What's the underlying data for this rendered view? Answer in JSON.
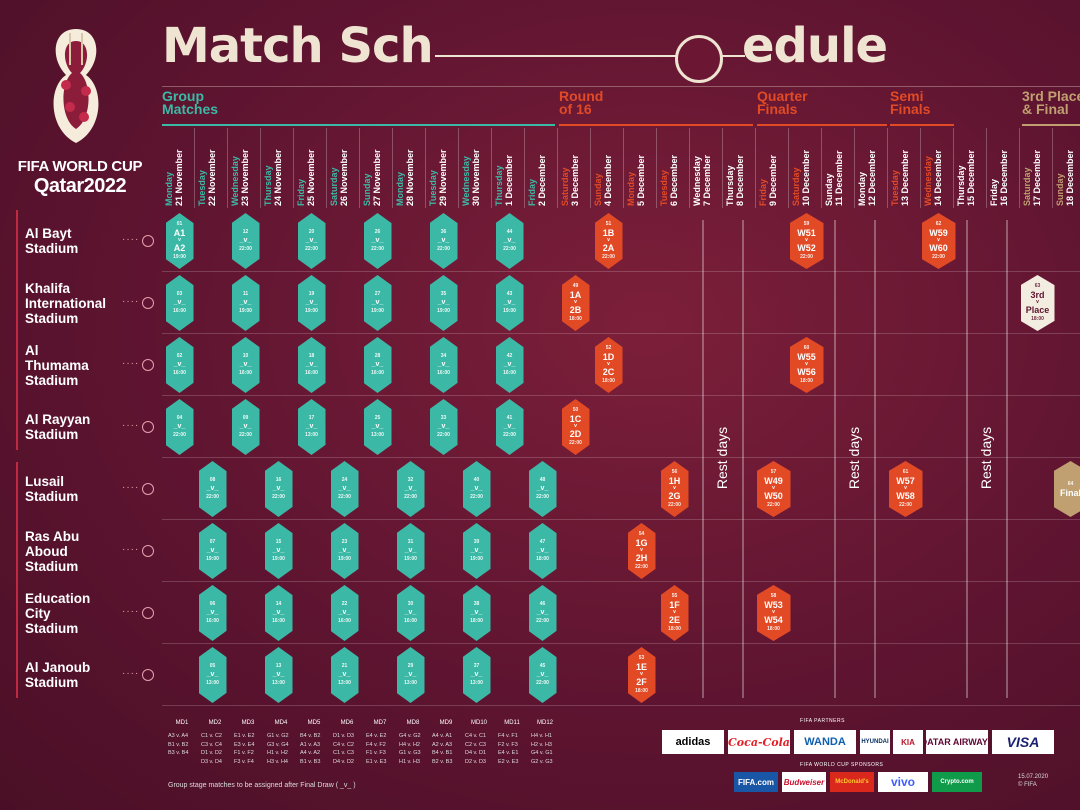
{
  "header": {
    "title_left": "Match Sch",
    "title_right": "edule",
    "logo_line1": "FIFA WORLD CUP",
    "logo_line2": "Qatar2022"
  },
  "stages": {
    "group": "Group\nMatches",
    "r16": "Round\nof 16",
    "qf": "Quarter\nFinals",
    "sf": "Semi\nFinals",
    "final": "3rd Place\n& Final"
  },
  "dates": [
    {
      "day": "Monday",
      "date": "21 November"
    },
    {
      "day": "Tuesday",
      "date": "22 November"
    },
    {
      "day": "Wednesday",
      "date": "23 November"
    },
    {
      "day": "Thursday",
      "date": "24 November"
    },
    {
      "day": "Friday",
      "date": "25 November"
    },
    {
      "day": "Saturday",
      "date": "26 November"
    },
    {
      "day": "Sunday",
      "date": "27 November"
    },
    {
      "day": "Monday",
      "date": "28 November"
    },
    {
      "day": "Tuesday",
      "date": "29 November"
    },
    {
      "day": "Wednesday",
      "date": "30 November"
    },
    {
      "day": "Thursday",
      "date": "1 December"
    },
    {
      "day": "Friday",
      "date": "2 December"
    },
    {
      "day": "Saturday",
      "date": "3 December"
    },
    {
      "day": "Sunday",
      "date": "4 December"
    },
    {
      "day": "Monday",
      "date": "5 December"
    },
    {
      "day": "Tuesday",
      "date": "6 December"
    },
    {
      "day": "Wednesday",
      "date": "7 December"
    },
    {
      "day": "Thursday",
      "date": "8 December"
    },
    {
      "day": "Friday",
      "date": "9 December"
    },
    {
      "day": "Saturday",
      "date": "10 December"
    },
    {
      "day": "Sunday",
      "date": "11 December"
    },
    {
      "day": "Monday",
      "date": "12 December"
    },
    {
      "day": "Tuesday",
      "date": "13 December"
    },
    {
      "day": "Wednesday",
      "date": "14 December"
    },
    {
      "day": "Thursday",
      "date": "15 December"
    },
    {
      "day": "Friday",
      "date": "16 December"
    },
    {
      "day": "Saturday",
      "date": "17 December"
    },
    {
      "day": "Sunday",
      "date": "18 December"
    }
  ],
  "stadiums": [
    {
      "name": "Al Bayt\nStadium"
    },
    {
      "name": "Khalifa\nInternational\nStadium"
    },
    {
      "name": "Al\nThumama\nStadium"
    },
    {
      "name": "Al Rayyan\nStadium"
    },
    {
      "name": "Lusail\nStadium"
    },
    {
      "name": "Ras Abu\nAboud\nStadium"
    },
    {
      "name": "Education\nCity\nStadium"
    },
    {
      "name": "Al Janoub\nStadium"
    }
  ],
  "matches": [
    {
      "row": 0,
      "col": 0,
      "kind": "g",
      "num": "01",
      "t1": "A1",
      "t2": "A2",
      "time": "19:00"
    },
    {
      "row": 0,
      "col": 2,
      "kind": "g",
      "num": "12",
      "t1": "_v_",
      "t2": "",
      "time": "22:00"
    },
    {
      "row": 0,
      "col": 4,
      "kind": "g",
      "num": "20",
      "t1": "_v_",
      "t2": "",
      "time": "22:00"
    },
    {
      "row": 0,
      "col": 6,
      "kind": "g",
      "num": "26",
      "t1": "_v_",
      "t2": "",
      "time": "22:00"
    },
    {
      "row": 0,
      "col": 8,
      "kind": "g",
      "num": "36",
      "t1": "_v_",
      "t2": "",
      "time": "22:00"
    },
    {
      "row": 0,
      "col": 10,
      "kind": "g",
      "num": "44",
      "t1": "_v_",
      "t2": "",
      "time": "22:00"
    },
    {
      "row": 0,
      "col": 13,
      "kind": "k",
      "num": "51",
      "t1": "1B",
      "t2": "2A",
      "time": "22:00"
    },
    {
      "row": 0,
      "col": 19,
      "kind": "k",
      "num": "59",
      "t1": "W51",
      "t2": "W52",
      "time": "22:00"
    },
    {
      "row": 0,
      "col": 23,
      "kind": "k",
      "num": "62",
      "t1": "W59",
      "t2": "W60",
      "time": "22:00"
    },
    {
      "row": 1,
      "col": 0,
      "kind": "g",
      "num": "03",
      "t1": "_v_",
      "t2": "",
      "time": "16:00"
    },
    {
      "row": 1,
      "col": 2,
      "kind": "g",
      "num": "11",
      "t1": "_v_",
      "t2": "",
      "time": "19:00"
    },
    {
      "row": 1,
      "col": 4,
      "kind": "g",
      "num": "19",
      "t1": "_v_",
      "t2": "",
      "time": "19:00"
    },
    {
      "row": 1,
      "col": 6,
      "kind": "g",
      "num": "27",
      "t1": "_v_",
      "t2": "",
      "time": "19:00"
    },
    {
      "row": 1,
      "col": 8,
      "kind": "g",
      "num": "35",
      "t1": "_v_",
      "t2": "",
      "time": "19:00"
    },
    {
      "row": 1,
      "col": 10,
      "kind": "g",
      "num": "43",
      "t1": "_v_",
      "t2": "",
      "time": "19:00"
    },
    {
      "row": 1,
      "col": 12,
      "kind": "k",
      "num": "49",
      "t1": "1A",
      "t2": "2B",
      "time": "18:00"
    },
    {
      "row": 1,
      "col": 26,
      "kind": "tp",
      "num": "63",
      "t1": "3rd",
      "t2": "Place",
      "time": "18:00"
    },
    {
      "row": 2,
      "col": 0,
      "kind": "g",
      "num": "02",
      "t1": "_v_",
      "t2": "",
      "time": "16:00"
    },
    {
      "row": 2,
      "col": 2,
      "kind": "g",
      "num": "10",
      "t1": "_v_",
      "t2": "",
      "time": "16:00"
    },
    {
      "row": 2,
      "col": 4,
      "kind": "g",
      "num": "18",
      "t1": "_v_",
      "t2": "",
      "time": "16:00"
    },
    {
      "row": 2,
      "col": 6,
      "kind": "g",
      "num": "28",
      "t1": "_v_",
      "t2": "",
      "time": "16:00"
    },
    {
      "row": 2,
      "col": 8,
      "kind": "g",
      "num": "34",
      "t1": "_v_",
      "t2": "",
      "time": "16:00"
    },
    {
      "row": 2,
      "col": 10,
      "kind": "g",
      "num": "42",
      "t1": "_v_",
      "t2": "",
      "time": "16:00"
    },
    {
      "row": 2,
      "col": 13,
      "kind": "k",
      "num": "52",
      "t1": "1D",
      "t2": "2C",
      "time": "18:00"
    },
    {
      "row": 2,
      "col": 19,
      "kind": "k",
      "num": "60",
      "t1": "W55",
      "t2": "W56",
      "time": "18:00"
    },
    {
      "row": 3,
      "col": 0,
      "kind": "g",
      "num": "04",
      "t1": "_v_",
      "t2": "",
      "time": "22:00"
    },
    {
      "row": 3,
      "col": 2,
      "kind": "g",
      "num": "09",
      "t1": "_v_",
      "t2": "",
      "time": "22:00"
    },
    {
      "row": 3,
      "col": 4,
      "kind": "g",
      "num": "17",
      "t1": "_v_",
      "t2": "",
      "time": "13:00"
    },
    {
      "row": 3,
      "col": 6,
      "kind": "g",
      "num": "25",
      "t1": "_v_",
      "t2": "",
      "time": "13:00"
    },
    {
      "row": 3,
      "col": 8,
      "kind": "g",
      "num": "33",
      "t1": "_v_",
      "t2": "",
      "time": "22:00"
    },
    {
      "row": 3,
      "col": 10,
      "kind": "g",
      "num": "41",
      "t1": "_v_",
      "t2": "",
      "time": "22:00"
    },
    {
      "row": 3,
      "col": 12,
      "kind": "k",
      "num": "50",
      "t1": "1C",
      "t2": "2D",
      "time": "22:00"
    },
    {
      "row": 4,
      "col": 1,
      "kind": "g",
      "num": "08",
      "t1": "_v_",
      "t2": "",
      "time": "22:00"
    },
    {
      "row": 4,
      "col": 3,
      "kind": "g",
      "num": "16",
      "t1": "_v_",
      "t2": "",
      "time": "22:00"
    },
    {
      "row": 4,
      "col": 5,
      "kind": "g",
      "num": "24",
      "t1": "_v_",
      "t2": "",
      "time": "22:00"
    },
    {
      "row": 4,
      "col": 7,
      "kind": "g",
      "num": "32",
      "t1": "_v_",
      "t2": "",
      "time": "22:00"
    },
    {
      "row": 4,
      "col": 9,
      "kind": "g",
      "num": "40",
      "t1": "_v_",
      "t2": "",
      "time": "22:00"
    },
    {
      "row": 4,
      "col": 11,
      "kind": "g",
      "num": "48",
      "t1": "_v_",
      "t2": "",
      "time": "22:00"
    },
    {
      "row": 4,
      "col": 15,
      "kind": "k",
      "num": "56",
      "t1": "1H",
      "t2": "2G",
      "time": "22:00"
    },
    {
      "row": 4,
      "col": 18,
      "kind": "k",
      "num": "57",
      "t1": "W49",
      "t2": "W50",
      "time": "22:00"
    },
    {
      "row": 4,
      "col": 22,
      "kind": "k",
      "num": "61",
      "t1": "W57",
      "t2": "W58",
      "time": "22:00"
    },
    {
      "row": 4,
      "col": 27,
      "kind": "f",
      "num": "64",
      "t1": "Final",
      "t2": "",
      "time": ""
    },
    {
      "row": 5,
      "col": 1,
      "kind": "g",
      "num": "07",
      "t1": "_v_",
      "t2": "",
      "time": "19:00"
    },
    {
      "row": 5,
      "col": 3,
      "kind": "g",
      "num": "15",
      "t1": "_v_",
      "t2": "",
      "time": "19:00"
    },
    {
      "row": 5,
      "col": 5,
      "kind": "g",
      "num": "23",
      "t1": "_v_",
      "t2": "",
      "time": "19:00"
    },
    {
      "row": 5,
      "col": 7,
      "kind": "g",
      "num": "31",
      "t1": "_v_",
      "t2": "",
      "time": "19:00"
    },
    {
      "row": 5,
      "col": 9,
      "kind": "g",
      "num": "39",
      "t1": "_v_",
      "t2": "",
      "time": "19:00"
    },
    {
      "row": 5,
      "col": 11,
      "kind": "g",
      "num": "47",
      "t1": "_v_",
      "t2": "",
      "time": "18:00"
    },
    {
      "row": 5,
      "col": 14,
      "kind": "k",
      "num": "54",
      "t1": "1G",
      "t2": "2H",
      "time": "22:00"
    },
    {
      "row": 6,
      "col": 1,
      "kind": "g",
      "num": "06",
      "t1": "_v_",
      "t2": "",
      "time": "16:00"
    },
    {
      "row": 6,
      "col": 3,
      "kind": "g",
      "num": "14",
      "t1": "_v_",
      "t2": "",
      "time": "16:00"
    },
    {
      "row": 6,
      "col": 5,
      "kind": "g",
      "num": "22",
      "t1": "_v_",
      "t2": "",
      "time": "16:00"
    },
    {
      "row": 6,
      "col": 7,
      "kind": "g",
      "num": "30",
      "t1": "_v_",
      "t2": "",
      "time": "16:00"
    },
    {
      "row": 6,
      "col": 9,
      "kind": "g",
      "num": "38",
      "t1": "_v_",
      "t2": "",
      "time": "18:00"
    },
    {
      "row": 6,
      "col": 11,
      "kind": "g",
      "num": "46",
      "t1": "_v_",
      "t2": "",
      "time": "22:00"
    },
    {
      "row": 6,
      "col": 15,
      "kind": "k",
      "num": "55",
      "t1": "1F",
      "t2": "2E",
      "time": "18:00"
    },
    {
      "row": 6,
      "col": 18,
      "kind": "k",
      "num": "58",
      "t1": "W53",
      "t2": "W54",
      "time": "18:00"
    },
    {
      "row": 7,
      "col": 1,
      "kind": "g",
      "num": "05",
      "t1": "_v_",
      "t2": "",
      "time": "13:00"
    },
    {
      "row": 7,
      "col": 3,
      "kind": "g",
      "num": "13",
      "t1": "_v_",
      "t2": "",
      "time": "13:00"
    },
    {
      "row": 7,
      "col": 5,
      "kind": "g",
      "num": "21",
      "t1": "_v_",
      "t2": "",
      "time": "13:00"
    },
    {
      "row": 7,
      "col": 7,
      "kind": "g",
      "num": "29",
      "t1": "_v_",
      "t2": "",
      "time": "13:00"
    },
    {
      "row": 7,
      "col": 9,
      "kind": "g",
      "num": "37",
      "t1": "_v_",
      "t2": "",
      "time": "13:00"
    },
    {
      "row": 7,
      "col": 11,
      "kind": "g",
      "num": "45",
      "t1": "_v_",
      "t2": "",
      "time": "22:00"
    },
    {
      "row": 7,
      "col": 14,
      "kind": "k",
      "num": "53",
      "t1": "1E",
      "t2": "2F",
      "time": "18:00"
    }
  ],
  "rest_days": [
    "Rest days",
    "Rest days",
    "Rest days"
  ],
  "matchdays": [
    {
      "label": "MD1",
      "text": "A3 v. A4\nB1 v. B2\nB3 v. B4"
    },
    {
      "label": "MD2",
      "text": "C1 v. C2\nC3 v. C4\nD1 v. D2\nD3 v. D4"
    },
    {
      "label": "MD3",
      "text": "E1 v. E2\nE3 v. E4\nF1 v. F2\nF3 v. F4"
    },
    {
      "label": "MD4",
      "text": "G1 v. G2\nG3 v. G4\nH1 v. H2\nH3 v. H4"
    },
    {
      "label": "MD5",
      "text": "B4 v. B2\nA1 v. A3\nA4 v. A2\nB1 v. B3"
    },
    {
      "label": "MD6",
      "text": "D1 v. D3\nC4 v. C2\nC1 v. C3\nD4 v. D2"
    },
    {
      "label": "MD7",
      "text": "E4 v. E2\nF4 v. F2\nF1 v. F3\nE1 v. E3"
    },
    {
      "label": "MD8",
      "text": "G4 v. G2\nH4 v. H2\nG1 v. G3\nH1 v. H3"
    },
    {
      "label": "MD9",
      "text": "A4 v. A1\nA2 v. A3\nB4 v. B1\nB2 v. B3"
    },
    {
      "label": "MD10",
      "text": "C4 v. C1\nC2 v. C3\nD4 v. D1\nD2 v. D3"
    },
    {
      "label": "MD11",
      "text": "F4 v. F1\nF2 v. F3\nE4 v. E1\nE2 v. E3"
    },
    {
      "label": "MD12",
      "text": "H4 v. H1\nH2 v. H3\nG4 v. G1\nG2 v. G3"
    }
  ],
  "footer_note": "Group stage matches to be assigned after Final Draw ( _v_ )",
  "partners_title": "FIFA PARTNERS",
  "sponsors_title": "FIFA WORLD CUP SPONSORS",
  "partners": [
    "adidas",
    "Coca-Cola",
    "WANDA",
    "HYUNDAI",
    "KIA",
    "QATAR AIRWAYS",
    "VISA"
  ],
  "sponsors": [
    "FIFA.com",
    "Budweiser",
    "McDonald's",
    "vivo",
    "Crypto.com"
  ],
  "footer_date": "15.07.2020",
  "footer_copyright": "© FIFA",
  "colors": {
    "group": "#3cb9a6",
    "knockout": "#e24a25",
    "final": "#c0a070",
    "bg": "#5e1430"
  }
}
